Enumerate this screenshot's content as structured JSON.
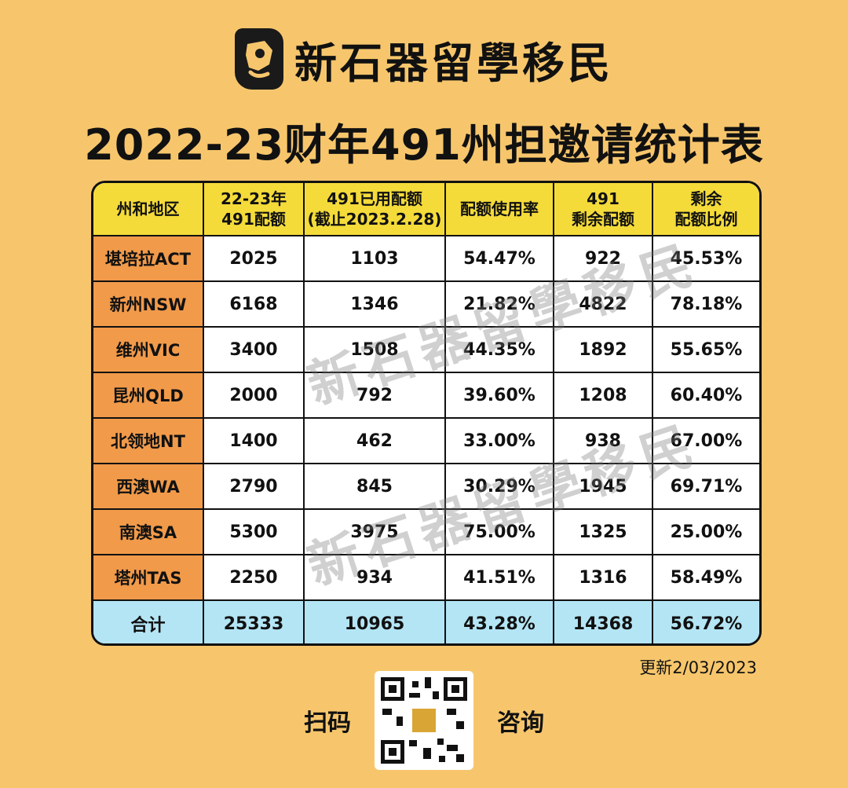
{
  "brand": {
    "name": "新石器留學移民",
    "logo_icon": "stone-logo-icon"
  },
  "title": "2022-23财年491州担邀请统计表",
  "table": {
    "headers": [
      {
        "line1": "州和地区",
        "line2": ""
      },
      {
        "line1": "22-23年",
        "line2": "491配额"
      },
      {
        "line1": "491已用配额",
        "line2": "(截止2023.2.28)"
      },
      {
        "line1": "配额使用率",
        "line2": ""
      },
      {
        "line1": "491",
        "line2": "剩余配额"
      },
      {
        "line1": "剩余",
        "line2": "配额比例"
      }
    ],
    "rows": [
      {
        "region": "堪培拉ACT",
        "quota": "2025",
        "used": "1103",
        "rate": "54.47%",
        "remaining": "922",
        "remaining_ratio": "45.53%"
      },
      {
        "region": "新州NSW",
        "quota": "6168",
        "used": "1346",
        "rate": "21.82%",
        "remaining": "4822",
        "remaining_ratio": "78.18%"
      },
      {
        "region": "维州VIC",
        "quota": "3400",
        "used": "1508",
        "rate": "44.35%",
        "remaining": "1892",
        "remaining_ratio": "55.65%"
      },
      {
        "region": "昆州QLD",
        "quota": "2000",
        "used": "792",
        "rate": "39.60%",
        "remaining": "1208",
        "remaining_ratio": "60.40%"
      },
      {
        "region": "北领地NT",
        "quota": "1400",
        "used": "462",
        "rate": "33.00%",
        "remaining": "938",
        "remaining_ratio": "67.00%"
      },
      {
        "region": "西澳WA",
        "quota": "2790",
        "used": "845",
        "rate": "30.29%",
        "remaining": "1945",
        "remaining_ratio": "69.71%"
      },
      {
        "region": "南澳SA",
        "quota": "5300",
        "used": "3975",
        "rate": "75.00%",
        "remaining": "1325",
        "remaining_ratio": "25.00%"
      },
      {
        "region": "塔州TAS",
        "quota": "2250",
        "used": "934",
        "rate": "41.51%",
        "remaining": "1316",
        "remaining_ratio": "58.49%"
      }
    ],
    "total": {
      "region": "合计",
      "quota": "25333",
      "used": "10965",
      "rate": "43.28%",
      "remaining": "14368",
      "remaining_ratio": "56.72%"
    }
  },
  "watermark": "新石器留學移民",
  "updated": "更新2/03/2023",
  "footer": {
    "left_label": "扫码",
    "right_label": "咨询",
    "qr_icon": "qr-code-icon"
  },
  "colors": {
    "background": "#f7c66c",
    "header": "#f4db3a",
    "region_column": "#f19a4a",
    "total_row": "#b4e5f5"
  }
}
